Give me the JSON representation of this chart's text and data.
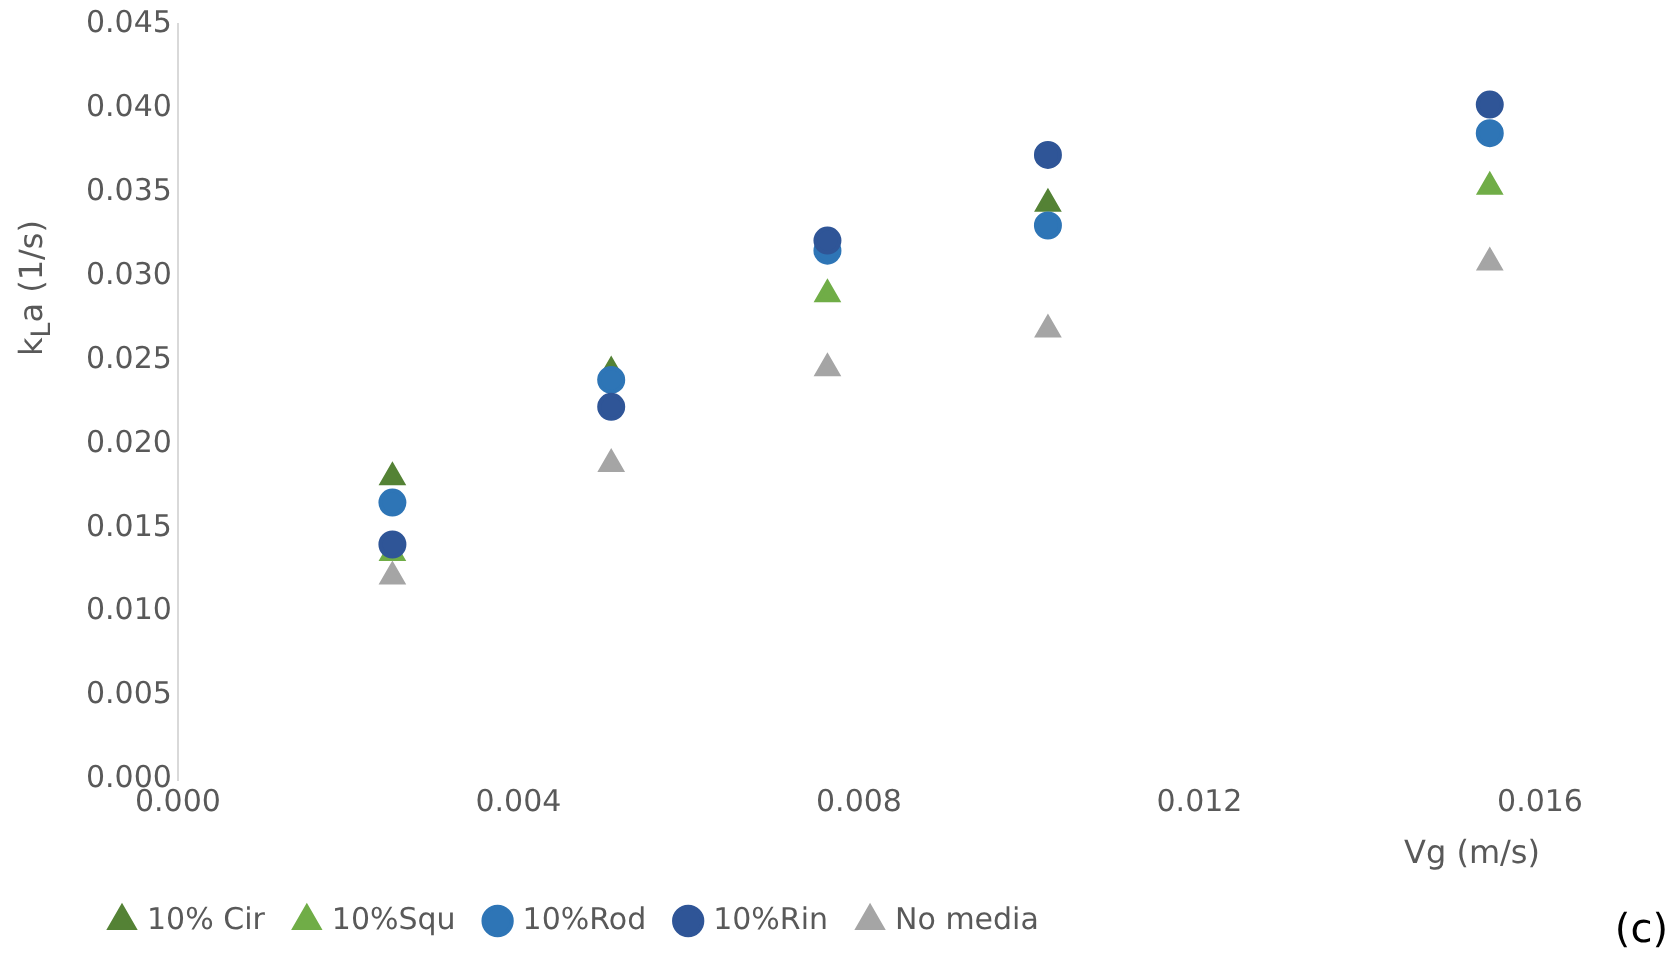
{
  "chart_data": {
    "type": "scatter",
    "ylabel": "k$_{L}$a (1/s)",
    "xlabel": "Vg (m/s)",
    "annotations": [
      "(c)"
    ],
    "x": [
      0.00252,
      0.00509,
      0.00763,
      0.01022,
      0.01541
    ],
    "xlim": [
      0,
      0.016
    ],
    "xticks": [
      {
        "value": 0,
        "label": "0.000"
      },
      {
        "value": 0.004,
        "label": "0.004"
      },
      {
        "value": 0.008,
        "label": "0.008"
      },
      {
        "value": 0.012,
        "label": "0.012"
      },
      {
        "value": 0.016,
        "label": "0.016"
      }
    ],
    "ylim": [
      0,
      0.045
    ],
    "yticks": [
      {
        "value": 0,
        "label": "0.000"
      },
      {
        "value": 0.005,
        "label": "0.005"
      },
      {
        "value": 0.01,
        "label": "0.010"
      },
      {
        "value": 0.015,
        "label": "0.015"
      },
      {
        "value": 0.02,
        "label": "0.020"
      },
      {
        "value": 0.025,
        "label": "0.025"
      },
      {
        "value": 0.03,
        "label": "0.030"
      },
      {
        "value": 0.035,
        "label": "0.035"
      },
      {
        "value": 0.04,
        "label": "0.040"
      },
      {
        "value": 0.045,
        "label": "0.045"
      }
    ],
    "grid": false,
    "legend": "bottom left",
    "series": [
      {
        "name": "10% Cir",
        "color": "#548235",
        "marker": "triangle",
        "values": [
          0.018,
          0.0243,
          null,
          0.0343,
          null
        ]
      },
      {
        "name": "10%Squ",
        "color": "#70ad47",
        "marker": "triangle",
        "values": [
          0.0135,
          null,
          0.0289,
          null,
          0.0353
        ]
      },
      {
        "name": "10%Rod",
        "color": "#2e75b6",
        "marker": "circle",
        "values": [
          0.0165,
          0.0238,
          0.0315,
          0.033,
          0.0385
        ]
      },
      {
        "name": "10%Rin",
        "color": "#2f5597",
        "marker": "circle",
        "values": [
          0.014,
          0.0222,
          0.0321,
          0.0372,
          0.0402
        ]
      },
      {
        "name": "No media",
        "color": "#a5a5a5",
        "marker": "triangle",
        "values": [
          0.0121,
          0.0188,
          0.0245,
          0.0268,
          0.0308
        ]
      }
    ]
  }
}
